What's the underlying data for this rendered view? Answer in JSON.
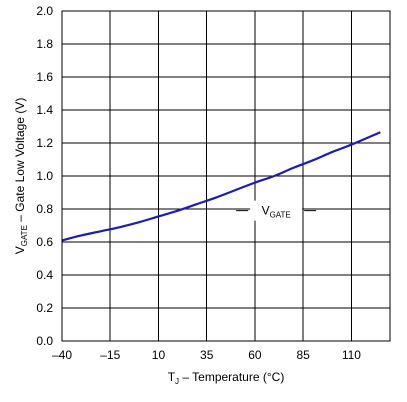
{
  "chart_data": {
    "type": "line",
    "title": "",
    "xlabel": {
      "main": "T",
      "sub": "J",
      "rest": " – Temperature (°C)"
    },
    "ylabel": {
      "main": "V",
      "sub": "GATE",
      "rest": " – Gate Low Voltage (V)"
    },
    "xlim": [
      -40,
      130
    ],
    "ylim": [
      0.0,
      2.0
    ],
    "xticks": [
      -40,
      -15,
      10,
      35,
      60,
      85,
      110
    ],
    "xtick_labels": [
      "–40",
      "–15",
      "10",
      "35",
      "60",
      "85",
      "110"
    ],
    "yticks": [
      0.0,
      0.2,
      0.4,
      0.6,
      0.8,
      1.0,
      1.2,
      1.4,
      1.6,
      1.8,
      2.0
    ],
    "ytick_labels": [
      "0.0",
      "0.2",
      "0.4",
      "0.6",
      "0.8",
      "1.0",
      "1.2",
      "1.4",
      "1.6",
      "1.8",
      "2.0"
    ],
    "grid": true,
    "series": [
      {
        "color": "#1a1ac8",
        "x": [
          -40,
          -30,
          -20,
          -10,
          0,
          10,
          20,
          30,
          40,
          50,
          60,
          70,
          80,
          90,
          100,
          110,
          125
        ],
        "y": [
          0.61,
          0.64,
          0.665,
          0.69,
          0.72,
          0.755,
          0.79,
          0.83,
          0.87,
          0.915,
          0.96,
          1.0,
          1.05,
          1.095,
          1.145,
          1.19,
          1.265
        ]
      }
    ],
    "annotations": [
      {
        "label_main": "V",
        "label_sub": "GATE",
        "x": 71,
        "y": 0.79
      }
    ]
  }
}
